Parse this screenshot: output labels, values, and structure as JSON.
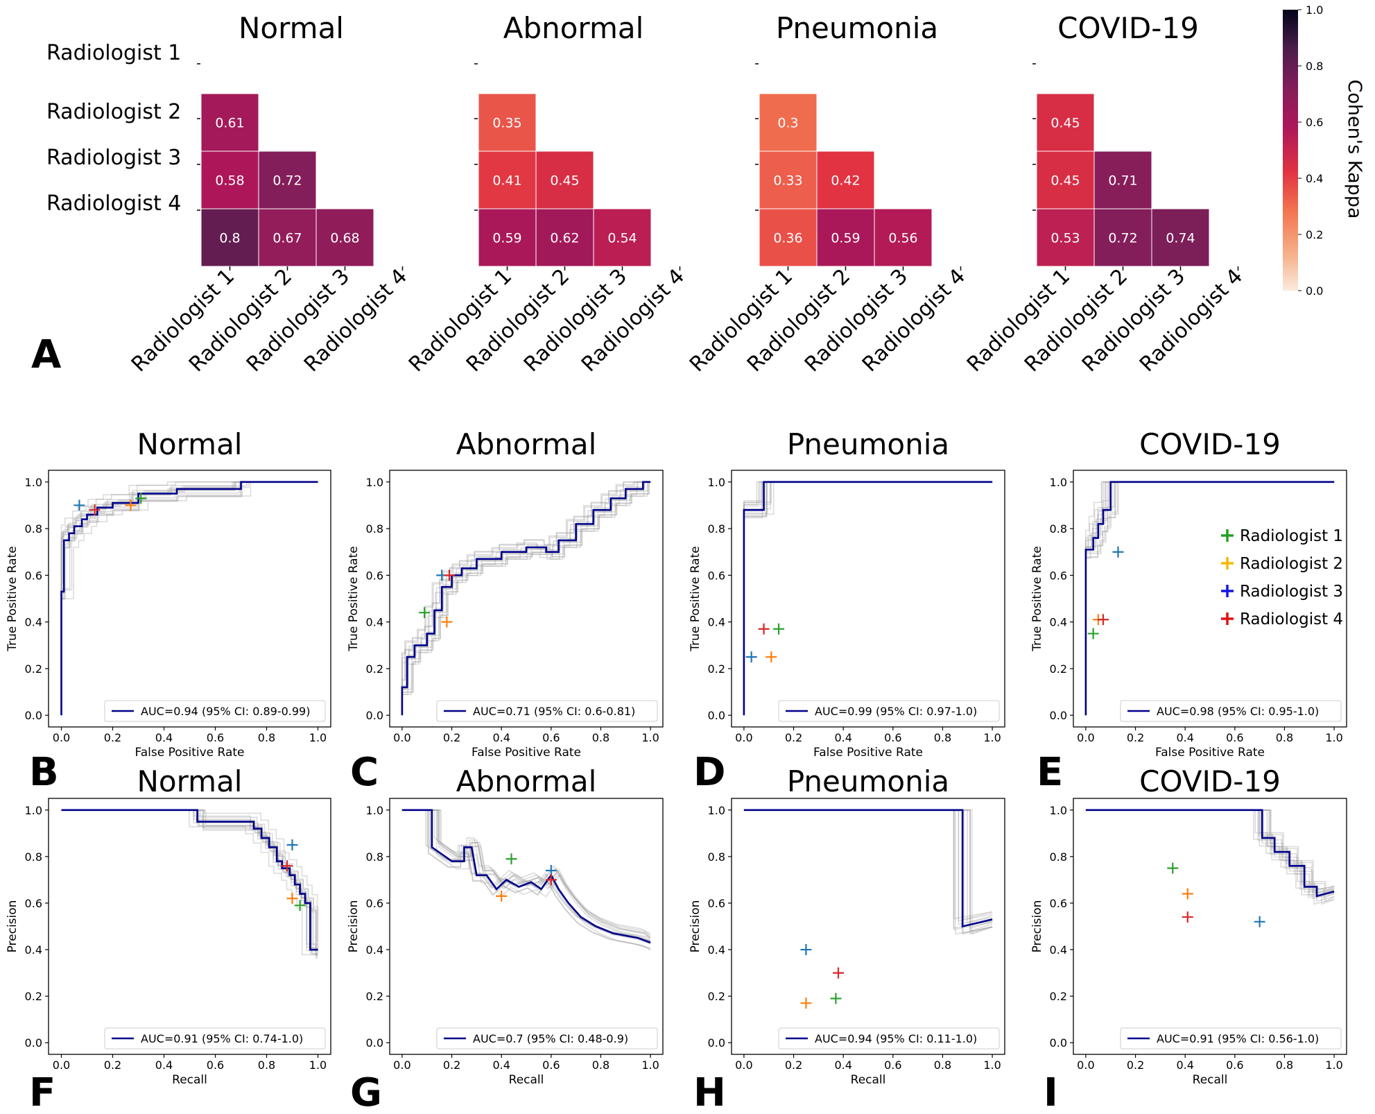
{
  "panel_letters": [
    "A",
    "B",
    "C",
    "D",
    "E",
    "F",
    "G",
    "H",
    "I"
  ],
  "colorbar": {
    "label": "Cohen's Kappa",
    "ticks": [
      "0.0",
      "0.2",
      "0.4",
      "0.6",
      "0.8",
      "1.0"
    ]
  },
  "radiologists": [
    "Radiologist 1",
    "Radiologist 2",
    "Radiologist 3",
    "Radiologist 4"
  ],
  "radiologist_colors": [
    "#2ca02c",
    "#ff7f0e",
    "#1f77b4",
    "#d62728"
  ],
  "legend_marker_colors": [
    "#22a022",
    "#f5b800",
    "#1515e0",
    "#e01010"
  ],
  "axis_tick_labels": [
    "0.0",
    "0.2",
    "0.4",
    "0.6",
    "0.8",
    "1.0"
  ],
  "roc_axes": {
    "xlabel": "False Positive Rate",
    "ylabel": "True Positive Rate"
  },
  "pr_axes": {
    "xlabel": "Recall",
    "ylabel": "Precision"
  },
  "chart_data": [
    {
      "type": "heatmap",
      "panel": "A",
      "title": "Normal",
      "rows": [
        "Radiologist 1",
        "Radiologist 2",
        "Radiologist 3",
        "Radiologist 4"
      ],
      "cols": [
        "Radiologist 1",
        "Radiologist 2",
        "Radiologist 3",
        "Radiologist 4"
      ],
      "values": [
        [
          null,
          null,
          null,
          null
        ],
        [
          0.61,
          null,
          null,
          null
        ],
        [
          0.58,
          0.72,
          null,
          null
        ],
        [
          0.8,
          0.67,
          0.68,
          null
        ]
      ],
      "labels": [
        [
          null,
          null,
          null,
          null
        ],
        [
          "0.61",
          null,
          null,
          null
        ],
        [
          "0.58",
          "0.72",
          null,
          null
        ],
        [
          "0.8",
          "0.67",
          "0.68",
          null
        ]
      ],
      "vmin": 0.0,
      "vmax": 1.0
    },
    {
      "type": "heatmap",
      "panel": "A",
      "title": "Abnormal",
      "rows": [
        "Radiologist 1",
        "Radiologist 2",
        "Radiologist 3",
        "Radiologist 4"
      ],
      "cols": [
        "Radiologist 1",
        "Radiologist 2",
        "Radiologist 3",
        "Radiologist 4"
      ],
      "values": [
        [
          null,
          null,
          null,
          null
        ],
        [
          0.35,
          null,
          null,
          null
        ],
        [
          0.41,
          0.45,
          null,
          null
        ],
        [
          0.59,
          0.62,
          0.54,
          null
        ]
      ],
      "labels": [
        [
          null,
          null,
          null,
          null
        ],
        [
          "0.35",
          null,
          null,
          null
        ],
        [
          "0.41",
          "0.45",
          null,
          null
        ],
        [
          "0.59",
          "0.62",
          "0.54",
          null
        ]
      ],
      "vmin": 0.0,
      "vmax": 1.0
    },
    {
      "type": "heatmap",
      "panel": "A",
      "title": "Pneumonia",
      "rows": [
        "Radiologist 1",
        "Radiologist 2",
        "Radiologist 3",
        "Radiologist 4"
      ],
      "cols": [
        "Radiologist 1",
        "Radiologist 2",
        "Radiologist 3",
        "Radiologist 4"
      ],
      "values": [
        [
          null,
          null,
          null,
          null
        ],
        [
          0.3,
          null,
          null,
          null
        ],
        [
          0.33,
          0.42,
          null,
          null
        ],
        [
          0.36,
          0.59,
          0.56,
          null
        ]
      ],
      "labels": [
        [
          null,
          null,
          null,
          null
        ],
        [
          "0.3",
          null,
          null,
          null
        ],
        [
          "0.33",
          "0.42",
          null,
          null
        ],
        [
          "0.36",
          "0.59",
          "0.56",
          null
        ]
      ],
      "vmin": 0.0,
      "vmax": 1.0
    },
    {
      "type": "heatmap",
      "panel": "A",
      "title": "COVID-19",
      "rows": [
        "Radiologist 1",
        "Radiologist 2",
        "Radiologist 3",
        "Radiologist 4"
      ],
      "cols": [
        "Radiologist 1",
        "Radiologist 2",
        "Radiologist 3",
        "Radiologist 4"
      ],
      "values": [
        [
          null,
          null,
          null,
          null
        ],
        [
          0.45,
          null,
          null,
          null
        ],
        [
          0.45,
          0.71,
          null,
          null
        ],
        [
          0.53,
          0.72,
          0.74,
          null
        ]
      ],
      "labels": [
        [
          null,
          null,
          null,
          null
        ],
        [
          "0.45",
          null,
          null,
          null
        ],
        [
          "0.45",
          "0.71",
          null,
          null
        ],
        [
          "0.53",
          "0.72",
          "0.74",
          null
        ]
      ],
      "vmin": 0.0,
      "vmax": 1.0
    },
    {
      "type": "line",
      "panel": "B",
      "kind": "roc",
      "title": "Normal",
      "xlabel": "False Positive Rate",
      "ylabel": "True Positive Rate",
      "xlim": [
        -0.05,
        1.05
      ],
      "ylim": [
        -0.05,
        1.05
      ],
      "legend": "AUC=0.94 (95% CI: 0.89-0.99)",
      "legend_position": "lower-right",
      "curve": [
        [
          0,
          0
        ],
        [
          0,
          0.53
        ],
        [
          0.01,
          0.53
        ],
        [
          0.01,
          0.75
        ],
        [
          0.03,
          0.75
        ],
        [
          0.03,
          0.78
        ],
        [
          0.05,
          0.78
        ],
        [
          0.05,
          0.81
        ],
        [
          0.08,
          0.81
        ],
        [
          0.08,
          0.84
        ],
        [
          0.1,
          0.84
        ],
        [
          0.1,
          0.86
        ],
        [
          0.14,
          0.86
        ],
        [
          0.14,
          0.89
        ],
        [
          0.2,
          0.89
        ],
        [
          0.2,
          0.91
        ],
        [
          0.3,
          0.91
        ],
        [
          0.3,
          0.95
        ],
        [
          0.45,
          0.95
        ],
        [
          0.45,
          0.97
        ],
        [
          0.7,
          0.97
        ],
        [
          0.7,
          1.0
        ],
        [
          1.0,
          1.0
        ]
      ],
      "radiologists": [
        {
          "name": "Radiologist 1",
          "x": 0.31,
          "y": 0.93
        },
        {
          "name": "Radiologist 2",
          "x": 0.27,
          "y": 0.9
        },
        {
          "name": "Radiologist 3",
          "x": 0.07,
          "y": 0.9
        },
        {
          "name": "Radiologist 4",
          "x": 0.13,
          "y": 0.88
        }
      ]
    },
    {
      "type": "line",
      "panel": "C",
      "kind": "roc",
      "title": "Abnormal",
      "xlabel": "False Positive Rate",
      "ylabel": "True Positive Rate",
      "xlim": [
        -0.05,
        1.05
      ],
      "ylim": [
        -0.05,
        1.05
      ],
      "legend": "AUC=0.71 (95% CI: 0.6-0.81)",
      "legend_position": "lower-right",
      "curve": [
        [
          0,
          0
        ],
        [
          0,
          0.12
        ],
        [
          0.02,
          0.12
        ],
        [
          0.02,
          0.25
        ],
        [
          0.05,
          0.25
        ],
        [
          0.05,
          0.3
        ],
        [
          0.1,
          0.3
        ],
        [
          0.1,
          0.35
        ],
        [
          0.13,
          0.35
        ],
        [
          0.13,
          0.45
        ],
        [
          0.16,
          0.45
        ],
        [
          0.16,
          0.55
        ],
        [
          0.2,
          0.55
        ],
        [
          0.2,
          0.6
        ],
        [
          0.24,
          0.6
        ],
        [
          0.24,
          0.63
        ],
        [
          0.3,
          0.63
        ],
        [
          0.3,
          0.67
        ],
        [
          0.4,
          0.67
        ],
        [
          0.4,
          0.7
        ],
        [
          0.5,
          0.7
        ],
        [
          0.5,
          0.72
        ],
        [
          0.58,
          0.72
        ],
        [
          0.58,
          0.7
        ],
        [
          0.63,
          0.7
        ],
        [
          0.63,
          0.75
        ],
        [
          0.7,
          0.75
        ],
        [
          0.7,
          0.82
        ],
        [
          0.77,
          0.82
        ],
        [
          0.77,
          0.88
        ],
        [
          0.84,
          0.88
        ],
        [
          0.84,
          0.93
        ],
        [
          0.9,
          0.93
        ],
        [
          0.9,
          0.97
        ],
        [
          0.97,
          0.97
        ],
        [
          0.97,
          1.0
        ],
        [
          1.0,
          1.0
        ]
      ],
      "radiologists": [
        {
          "name": "Radiologist 1",
          "x": 0.09,
          "y": 0.44
        },
        {
          "name": "Radiologist 2",
          "x": 0.18,
          "y": 0.4
        },
        {
          "name": "Radiologist 3",
          "x": 0.16,
          "y": 0.6
        },
        {
          "name": "Radiologist 4",
          "x": 0.19,
          "y": 0.6
        }
      ]
    },
    {
      "type": "line",
      "panel": "D",
      "kind": "roc",
      "title": "Pneumonia",
      "xlabel": "False Positive Rate",
      "ylabel": "True Positive Rate",
      "xlim": [
        -0.05,
        1.05
      ],
      "ylim": [
        -0.05,
        1.05
      ],
      "legend": "AUC=0.99 (95% CI: 0.97-1.0)",
      "legend_position": "lower-right",
      "curve": [
        [
          0,
          0
        ],
        [
          0,
          0.88
        ],
        [
          0.08,
          0.88
        ],
        [
          0.08,
          1.0
        ],
        [
          1.0,
          1.0
        ]
      ],
      "radiologists": [
        {
          "name": "Radiologist 1",
          "x": 0.14,
          "y": 0.37
        },
        {
          "name": "Radiologist 2",
          "x": 0.11,
          "y": 0.25
        },
        {
          "name": "Radiologist 3",
          "x": 0.03,
          "y": 0.25
        },
        {
          "name": "Radiologist 4",
          "x": 0.08,
          "y": 0.37
        }
      ]
    },
    {
      "type": "line",
      "panel": "E",
      "kind": "roc",
      "title": "COVID-19",
      "xlabel": "False Positive Rate",
      "ylabel": "True Positive Rate",
      "xlim": [
        -0.05,
        1.05
      ],
      "ylim": [
        -0.05,
        1.05
      ],
      "legend": "AUC=0.98 (95% CI: 0.95-1.0)",
      "legend_position": "lower-right",
      "radiologist_legend_position": "upper-right",
      "curve": [
        [
          0,
          0
        ],
        [
          0,
          0.71
        ],
        [
          0.03,
          0.71
        ],
        [
          0.03,
          0.76
        ],
        [
          0.05,
          0.76
        ],
        [
          0.05,
          0.82
        ],
        [
          0.07,
          0.82
        ],
        [
          0.07,
          0.88
        ],
        [
          0.1,
          0.88
        ],
        [
          0.1,
          1.0
        ],
        [
          1.0,
          1.0
        ]
      ],
      "radiologists": [
        {
          "name": "Radiologist 1",
          "x": 0.03,
          "y": 0.35
        },
        {
          "name": "Radiologist 2",
          "x": 0.05,
          "y": 0.41
        },
        {
          "name": "Radiologist 3",
          "x": 0.13,
          "y": 0.7
        },
        {
          "name": "Radiologist 4",
          "x": 0.07,
          "y": 0.41
        }
      ]
    },
    {
      "type": "line",
      "panel": "F",
      "kind": "pr",
      "title": "Normal",
      "xlabel": "Recall",
      "ylabel": "Precision",
      "xlim": [
        -0.05,
        1.05
      ],
      "ylim": [
        -0.05,
        1.05
      ],
      "legend": "AUC=0.91 (95% CI: 0.74-1.0)",
      "legend_position": "lower-right",
      "curve": [
        [
          0,
          1.0
        ],
        [
          0.53,
          1.0
        ],
        [
          0.53,
          0.95
        ],
        [
          0.75,
          0.95
        ],
        [
          0.75,
          0.92
        ],
        [
          0.78,
          0.92
        ],
        [
          0.78,
          0.88
        ],
        [
          0.81,
          0.88
        ],
        [
          0.81,
          0.84
        ],
        [
          0.84,
          0.84
        ],
        [
          0.84,
          0.78
        ],
        [
          0.86,
          0.78
        ],
        [
          0.86,
          0.75
        ],
        [
          0.89,
          0.75
        ],
        [
          0.89,
          0.72
        ],
        [
          0.91,
          0.72
        ],
        [
          0.91,
          0.68
        ],
        [
          0.93,
          0.68
        ],
        [
          0.93,
          0.64
        ],
        [
          0.95,
          0.64
        ],
        [
          0.95,
          0.6
        ],
        [
          0.97,
          0.6
        ],
        [
          0.97,
          0.4
        ],
        [
          1.0,
          0.4
        ]
      ],
      "radiologists": [
        {
          "name": "Radiologist 1",
          "x": 0.93,
          "y": 0.59
        },
        {
          "name": "Radiologist 2",
          "x": 0.9,
          "y": 0.62
        },
        {
          "name": "Radiologist 3",
          "x": 0.9,
          "y": 0.85
        },
        {
          "name": "Radiologist 4",
          "x": 0.88,
          "y": 0.76
        }
      ]
    },
    {
      "type": "line",
      "panel": "G",
      "kind": "pr",
      "title": "Abnormal",
      "xlabel": "Recall",
      "ylabel": "Precision",
      "xlim": [
        -0.05,
        1.05
      ],
      "ylim": [
        -0.05,
        1.05
      ],
      "legend": "AUC=0.7 (95% CI: 0.48-0.9)",
      "legend_position": "lower-right",
      "curve": [
        [
          0,
          1.0
        ],
        [
          0.12,
          1.0
        ],
        [
          0.12,
          0.84
        ],
        [
          0.2,
          0.78
        ],
        [
          0.25,
          0.78
        ],
        [
          0.25,
          0.84
        ],
        [
          0.28,
          0.84
        ],
        [
          0.3,
          0.72
        ],
        [
          0.34,
          0.72
        ],
        [
          0.38,
          0.66
        ],
        [
          0.42,
          0.7
        ],
        [
          0.47,
          0.67
        ],
        [
          0.52,
          0.69
        ],
        [
          0.56,
          0.66
        ],
        [
          0.6,
          0.72
        ],
        [
          0.63,
          0.66
        ],
        [
          0.67,
          0.6
        ],
        [
          0.72,
          0.54
        ],
        [
          0.78,
          0.5
        ],
        [
          0.85,
          0.47
        ],
        [
          0.9,
          0.46
        ],
        [
          0.95,
          0.45
        ],
        [
          1.0,
          0.43
        ]
      ],
      "radiologists": [
        {
          "name": "Radiologist 1",
          "x": 0.44,
          "y": 0.79
        },
        {
          "name": "Radiologist 2",
          "x": 0.4,
          "y": 0.63
        },
        {
          "name": "Radiologist 3",
          "x": 0.6,
          "y": 0.74
        },
        {
          "name": "Radiologist 4",
          "x": 0.6,
          "y": 0.7
        }
      ]
    },
    {
      "type": "line",
      "panel": "H",
      "kind": "pr",
      "title": "Pneumonia",
      "xlabel": "Recall",
      "ylabel": "Precision",
      "xlim": [
        -0.05,
        1.05
      ],
      "ylim": [
        -0.05,
        1.05
      ],
      "legend": "AUC=0.94 (95% CI: 0.11-1.0)",
      "legend_position": "lower-right",
      "curve": [
        [
          0,
          1.0
        ],
        [
          0.88,
          1.0
        ],
        [
          0.88,
          0.5
        ],
        [
          1.0,
          0.53
        ]
      ],
      "radiologists": [
        {
          "name": "Radiologist 1",
          "x": 0.37,
          "y": 0.19
        },
        {
          "name": "Radiologist 2",
          "x": 0.25,
          "y": 0.17
        },
        {
          "name": "Radiologist 3",
          "x": 0.25,
          "y": 0.4
        },
        {
          "name": "Radiologist 4",
          "x": 0.38,
          "y": 0.3
        }
      ]
    },
    {
      "type": "line",
      "panel": "I",
      "kind": "pr",
      "title": "COVID-19",
      "xlabel": "Recall",
      "ylabel": "Precision",
      "xlim": [
        -0.05,
        1.05
      ],
      "ylim": [
        -0.05,
        1.05
      ],
      "legend": "AUC=0.91 (95% CI: 0.56-1.0)",
      "legend_position": "lower-right",
      "curve": [
        [
          0,
          1.0
        ],
        [
          0.71,
          1.0
        ],
        [
          0.71,
          0.88
        ],
        [
          0.76,
          0.88
        ],
        [
          0.76,
          0.82
        ],
        [
          0.82,
          0.82
        ],
        [
          0.82,
          0.76
        ],
        [
          0.88,
          0.76
        ],
        [
          0.88,
          0.67
        ],
        [
          0.93,
          0.67
        ],
        [
          0.93,
          0.63
        ],
        [
          1.0,
          0.65
        ]
      ],
      "radiologists": [
        {
          "name": "Radiologist 1",
          "x": 0.35,
          "y": 0.75
        },
        {
          "name": "Radiologist 2",
          "x": 0.41,
          "y": 0.64
        },
        {
          "name": "Radiologist 3",
          "x": 0.7,
          "y": 0.52
        },
        {
          "name": "Radiologist 4",
          "x": 0.41,
          "y": 0.54
        }
      ]
    }
  ]
}
